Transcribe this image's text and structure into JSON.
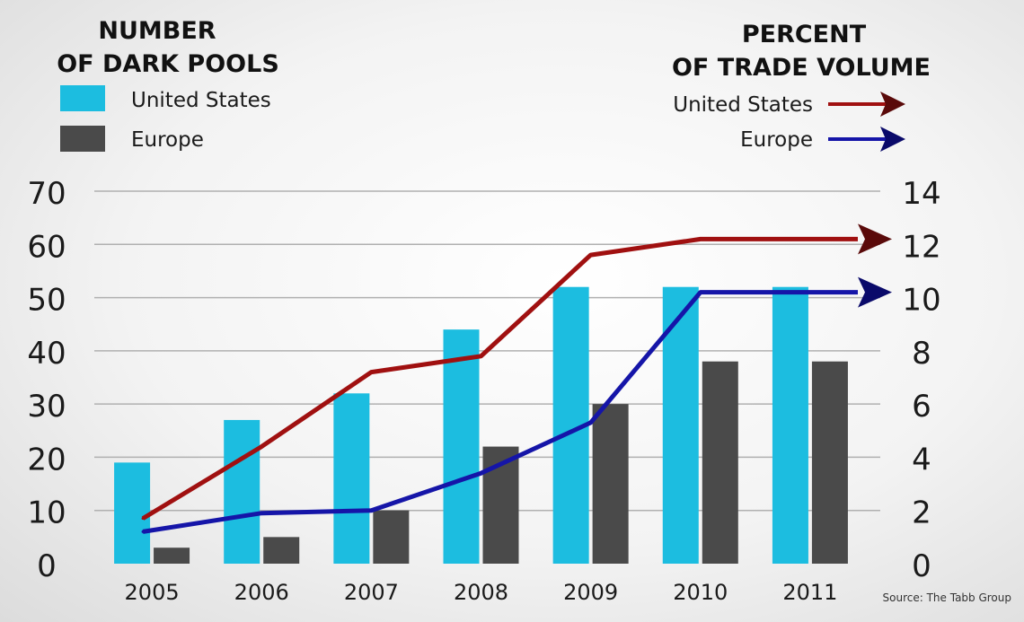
{
  "chart_data": {
    "type": "bar",
    "left_axis": {
      "title_line1": "NUMBER",
      "title_line2": "OF DARK POOLS",
      "ylim": [
        0,
        70
      ],
      "ticks": [
        0,
        10,
        20,
        30,
        40,
        50,
        60,
        70
      ],
      "tick_labels": [
        "0",
        "10",
        "20",
        "30",
        "40",
        "50",
        "60",
        "70"
      ]
    },
    "right_axis": {
      "title_line1": "PERCENT",
      "title_line2": "OF TRADE VOLUME",
      "ylim": [
        0,
        14
      ],
      "ticks": [
        0,
        2,
        4,
        6,
        8,
        10,
        12,
        14
      ],
      "tick_labels": [
        "0",
        "2",
        "4",
        "6",
        "8",
        "10",
        "12",
        "14"
      ]
    },
    "categories": [
      "2005",
      "2006",
      "2007",
      "2008",
      "2009",
      "2010",
      "2011"
    ],
    "bar_series": [
      {
        "name": "United States",
        "color": "#1cbde0",
        "values": [
          19,
          27,
          32,
          44,
          52,
          52,
          52
        ]
      },
      {
        "name": "Europe",
        "color": "#4a4a4a",
        "values": [
          3,
          5,
          10,
          22,
          30,
          38,
          38
        ]
      }
    ],
    "line_series": [
      {
        "name": "United States",
        "color": "#a01010",
        "values": [
          1.7,
          4.4,
          7.2,
          7.8,
          11.6,
          12.2,
          12.2
        ]
      },
      {
        "name": "Europe",
        "color": "#1515a8",
        "values": [
          1.2,
          1.9,
          2.0,
          3.4,
          5.3,
          10.2,
          10.2
        ]
      }
    ],
    "grid": true,
    "source": "Source: The Tabb Group"
  }
}
